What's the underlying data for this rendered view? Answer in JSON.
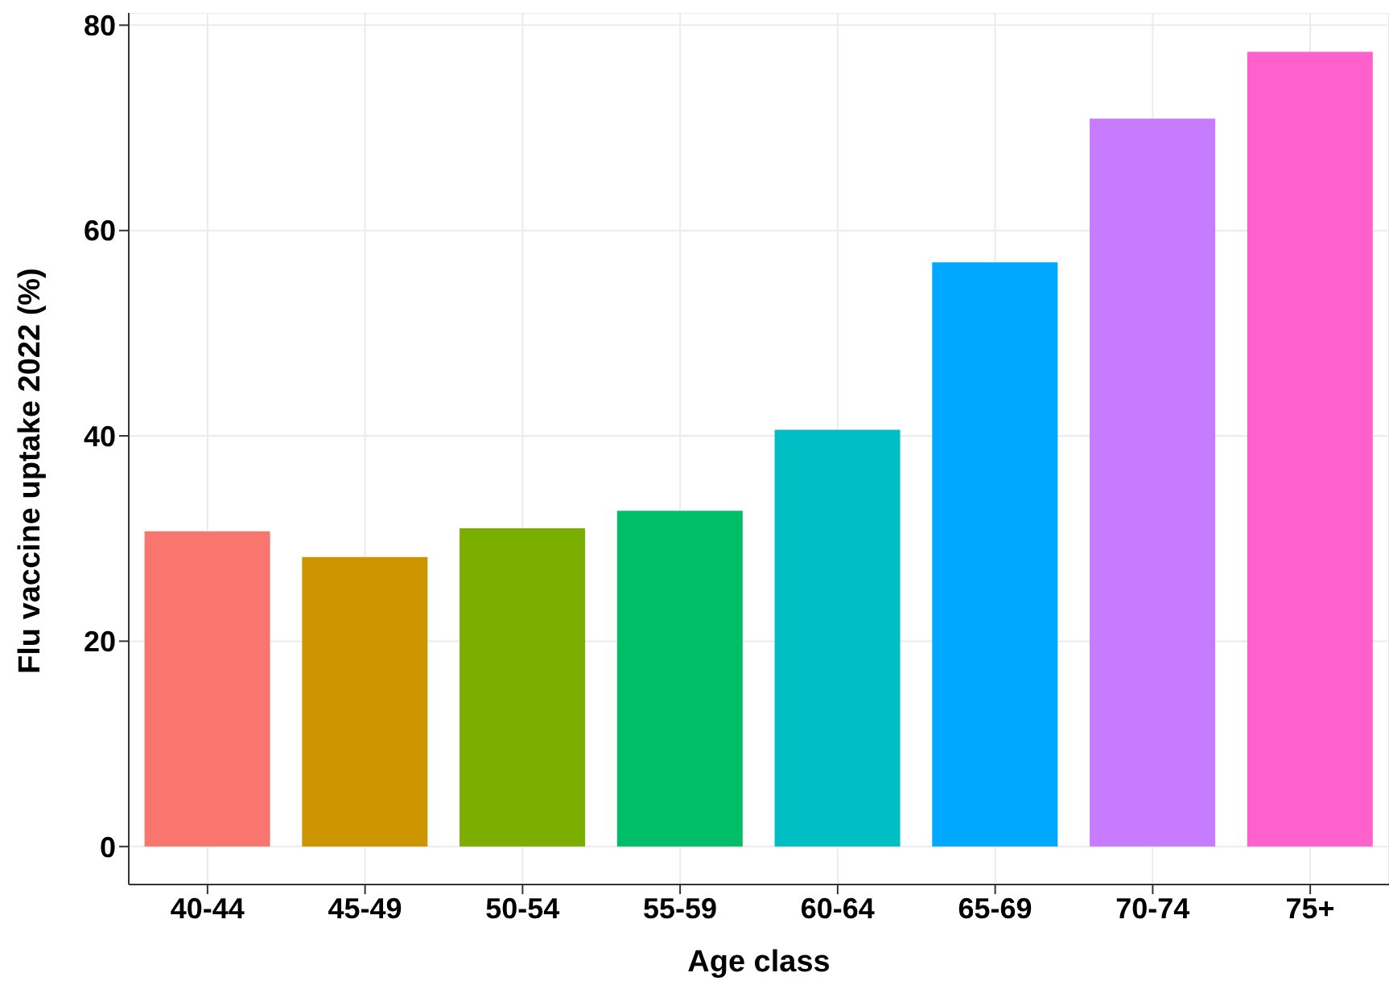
{
  "chart_data": {
    "type": "bar",
    "xlabel": "Age class",
    "ylabel": "Flu vaccine uptake 2022 (%)",
    "categories": [
      "40-44",
      "45-49",
      "50-54",
      "55-59",
      "60-64",
      "65-69",
      "70-74",
      "75+"
    ],
    "values": [
      30.7,
      28.2,
      31.0,
      32.7,
      40.6,
      56.9,
      70.9,
      77.4
    ],
    "colors": [
      "#f8766d",
      "#cd9600",
      "#7cae00",
      "#00be67",
      "#00bfc4",
      "#00a9ff",
      "#c77cff",
      "#ff61cc"
    ],
    "ylim": [
      -3.7,
      81.2
    ],
    "yticks": [
      0,
      20,
      40,
      60,
      80
    ],
    "grid": true,
    "legend": false
  }
}
